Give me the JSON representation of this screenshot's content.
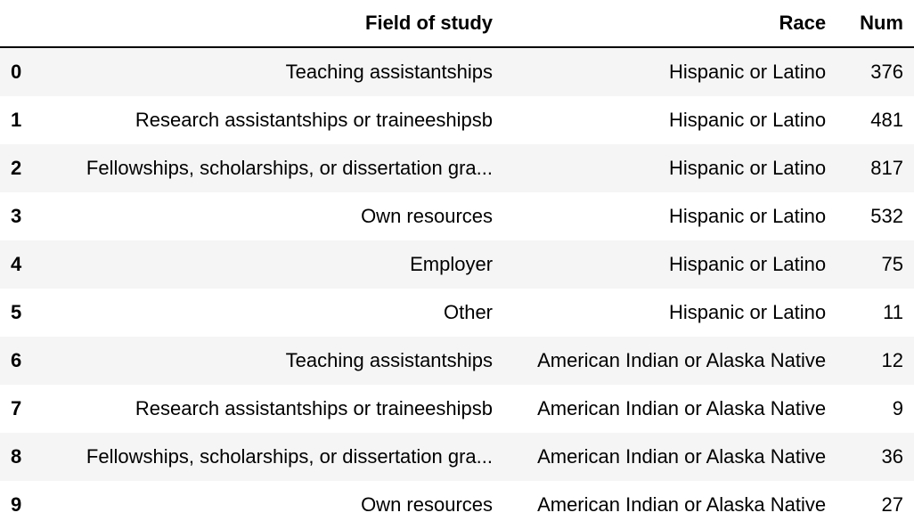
{
  "table": {
    "columns": {
      "index": "",
      "field": "Field of study",
      "race": "Race",
      "num": "Num"
    },
    "rows": [
      {
        "index": "0",
        "field": "Teaching assistantships",
        "race": "Hispanic or Latino",
        "num": "376"
      },
      {
        "index": "1",
        "field": "Research assistantships or traineeshipsb",
        "race": "Hispanic or Latino",
        "num": "481"
      },
      {
        "index": "2",
        "field": "Fellowships, scholarships, or dissertation gra...",
        "race": "Hispanic or Latino",
        "num": "817"
      },
      {
        "index": "3",
        "field": "Own resources",
        "race": "Hispanic or Latino",
        "num": "532"
      },
      {
        "index": "4",
        "field": "Employer",
        "race": "Hispanic or Latino",
        "num": "75"
      },
      {
        "index": "5",
        "field": "Other",
        "race": "Hispanic or Latino",
        "num": "11"
      },
      {
        "index": "6",
        "field": "Teaching assistantships",
        "race": "American Indian or Alaska Native",
        "num": "12"
      },
      {
        "index": "7",
        "field": "Research assistantships or traineeshipsb",
        "race": "American Indian or Alaska Native",
        "num": "9"
      },
      {
        "index": "8",
        "field": "Fellowships, scholarships, or dissertation gra...",
        "race": "American Indian or Alaska Native",
        "num": "36"
      },
      {
        "index": "9",
        "field": "Own resources",
        "race": "American Indian or Alaska Native",
        "num": "27"
      }
    ]
  }
}
